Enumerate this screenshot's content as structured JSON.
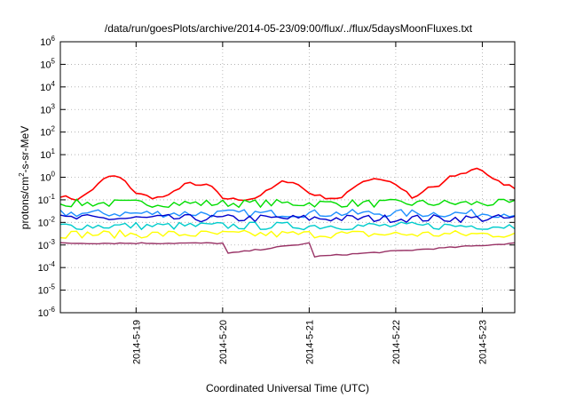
{
  "chart_data": {
    "type": "line",
    "title": "/data/run/goesPlots/archive/2014-05-23/09:00/flux/../flux/5daysMoonFluxes.txt",
    "xlabel": "Coordinated Universal Time (UTC)",
    "ylabel": "protons/cm2-s-sr-MeV",
    "yscale": "log",
    "ylim_exponents": [
      -6,
      6
    ],
    "ytick_base": "10",
    "yticks_exponents": [
      "-6",
      "-5",
      "-4",
      "-3",
      "-2",
      "-1",
      "0",
      "1",
      "2",
      "3",
      "4",
      "5",
      "6"
    ],
    "xlim": [
      "2014-05-18 03:00",
      "2014-05-23 09:00"
    ],
    "xticks": [
      "2014-5-19",
      "2014-5-20",
      "2014-5-21",
      "2014-5-22",
      "2014-5-23"
    ],
    "grid": true,
    "series": [
      {
        "color": "#ff0000",
        "x": [
          "2014-05-18 03:00",
          "2014-05-18 08:00",
          "2014-05-18 12:00",
          "2014-05-18 15:00",
          "2014-05-18 17:00",
          "2014-05-18 20:00",
          "2014-05-19 00:00",
          "2014-05-19 05:00",
          "2014-05-19 09:00",
          "2014-05-19 14:00",
          "2014-05-19 17:00",
          "2014-05-19 20:00",
          "2014-05-20 00:00",
          "2014-05-20 05:00",
          "2014-05-20 09:00",
          "2014-05-20 14:00",
          "2014-05-20 17:00",
          "2014-05-20 20:00",
          "2014-05-21 00:00",
          "2014-05-21 05:00",
          "2014-05-21 09:00",
          "2014-05-21 14:00",
          "2014-05-21 18:00",
          "2014-05-21 22:00",
          "2014-05-22 02:00",
          "2014-05-22 05:00",
          "2014-05-22 09:00",
          "2014-05-22 12:00",
          "2014-05-22 15:00",
          "2014-05-22 19:00",
          "2014-05-22 23:00",
          "2014-05-23 03:00",
          "2014-05-23 06:00",
          "2014-05-23 09:00"
        ],
        "y": [
          0.15,
          0.1,
          0.3,
          0.8,
          1.2,
          0.9,
          0.2,
          0.12,
          0.15,
          0.6,
          0.4,
          0.5,
          0.12,
          0.1,
          0.12,
          0.35,
          0.7,
          0.6,
          0.2,
          0.12,
          0.12,
          0.6,
          0.9,
          0.7,
          0.3,
          0.1,
          0.35,
          0.4,
          1.0,
          1.5,
          2.8,
          0.8,
          0.5,
          0.35
        ]
      },
      {
        "color": "#00dd00",
        "x": [
          "2014-05-18 03:00",
          "2014-05-23 09:00"
        ],
        "y": [
          0.07,
          0.07
        ]
      },
      {
        "color": "#1e90ff",
        "x": [
          "2014-05-18 03:00",
          "2014-05-23 09:00"
        ],
        "y": [
          0.025,
          0.025
        ]
      },
      {
        "color": "#0000cc",
        "x": [
          "2014-05-18 03:00",
          "2014-05-23 09:00"
        ],
        "y": [
          0.015,
          0.015
        ]
      },
      {
        "color": "#00cccc",
        "x": [
          "2014-05-18 03:00",
          "2014-05-23 09:00"
        ],
        "y": [
          0.007,
          0.007
        ]
      },
      {
        "color": "#ffff00",
        "x": [
          "2014-05-18 03:00",
          "2014-05-23 09:00"
        ],
        "y": [
          0.003,
          0.003
        ]
      },
      {
        "color": "#993366",
        "x": [
          "2014-05-18 03:00",
          "2014-05-20 00:00",
          "2014-05-20 00:30",
          "2014-05-21 00:00",
          "2014-05-21 00:30",
          "2014-05-23 09:00"
        ],
        "y": [
          0.0012,
          0.0012,
          0.0004,
          0.0012,
          0.0003,
          0.0012
        ]
      }
    ]
  }
}
